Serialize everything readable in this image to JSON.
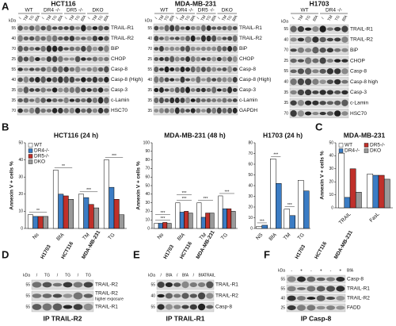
{
  "panel_labels": [
    "A",
    "B",
    "C",
    "D",
    "E",
    "F"
  ],
  "kda_label": "kDa",
  "blots_a": [
    {
      "title": "HCT116",
      "groups": [
        "WT",
        "DR4 -/-",
        "DR5 -/-",
        "DKO"
      ],
      "lanes": [
        "/",
        "TM",
        "TG",
        "BfA"
      ],
      "rows": [
        {
          "label": "TRAIL-R1",
          "kda": 55
        },
        {
          "label": "TRAIL-R2",
          "kda": 40
        },
        {
          "label": "BiP",
          "kda": 70
        },
        {
          "label": "CHOP",
          "kda": 25
        },
        {
          "label": "Casp-8",
          "kda": 55
        },
        {
          "label": "Casp-8 (High)",
          "kda": 40
        },
        {
          "label": "Casp-3",
          "kda": 35
        },
        {
          "label": "c-Lamin",
          "kda": 35
        },
        {
          "label": "HSC70",
          "kda": 70
        }
      ]
    },
    {
      "title": "MDA-MB-231",
      "groups": [
        "WT",
        "DR4 -/-",
        "DR5 -/-",
        "DKO"
      ],
      "lanes": [
        "/",
        "TM",
        "TG",
        "BfA"
      ],
      "rows": [
        {
          "label": "TRAIL-R1",
          "kda": 55
        },
        {
          "label": "TRAIL-R2",
          "kda": 40
        },
        {
          "label": "BiP",
          "kda": 70
        },
        {
          "label": "CHOP",
          "kda": 25
        },
        {
          "label": "Casp-8",
          "kda": 55
        },
        {
          "label": "Casp-8 (High)",
          "kda": 40
        },
        {
          "label": "Casp-3",
          "kda": 35
        },
        {
          "label": "c-Lamin",
          "kda": 35
        },
        {
          "label": "GAPDH",
          "kda": 35
        }
      ]
    },
    {
      "title": "H1703",
      "groups": [
        "WT",
        "DR4 -/-"
      ],
      "lanes": [
        "/",
        "TM",
        "TG",
        "BfA"
      ],
      "rows": [
        {
          "label": "TRAIL-R1",
          "kda": 55
        },
        {
          "label": "TRAIL-R2",
          "kda": 40
        },
        {
          "label": "BiP",
          "kda": 70
        },
        {
          "label": "CHOP",
          "kda": 25
        },
        {
          "label": "Casp-8",
          "kda": 55
        },
        {
          "label": "Casp-8 high",
          "kda": 40
        },
        {
          "label": "Casp-3",
          "kda": 35
        },
        {
          "label": "c-Lamin",
          "kda": 35
        },
        {
          "label": "HSC70",
          "kda": 70
        }
      ]
    }
  ],
  "chart_data": [
    {
      "type": "bar",
      "title": "HCT116 (24 h)",
      "ylabel": "Annexin V + cells %",
      "categories": [
        "Ns",
        "BfA",
        "TM",
        "TG"
      ],
      "series": [
        {
          "name": "WT",
          "color": "#ffffff",
          "values": [
            8,
            34,
            20,
            40
          ]
        },
        {
          "name": "DR4-/-",
          "color": "#3b7cc4",
          "values": [
            7,
            20,
            18,
            24
          ]
        },
        {
          "name": "DR5-/-",
          "color": "#c0302a",
          "values": [
            7,
            19,
            14,
            17
          ]
        },
        {
          "name": "DKO",
          "color": "#9a9a9a",
          "values": [
            7,
            17,
            12,
            8
          ]
        }
      ],
      "ylim": [
        0,
        50
      ],
      "yticks": [
        0,
        10,
        20,
        30,
        40,
        50
      ],
      "legend": "upper left",
      "annotations": [
        "**",
        "**",
        "***",
        "***"
      ]
    },
    {
      "type": "bar",
      "title": "MDA-MB-231 (48 h)",
      "ylabel": "Annexin V + cells %",
      "categories": [
        "Ns",
        "BfA",
        "TM",
        "TG"
      ],
      "series": [
        {
          "name": "WT",
          "color": "#ffffff",
          "values": [
            6,
            30,
            30,
            38
          ]
        },
        {
          "name": "DR4-/-",
          "color": "#3b7cc4",
          "values": [
            6,
            19,
            13,
            23
          ]
        },
        {
          "name": "DR5-/-",
          "color": "#c0302a",
          "values": [
            7,
            20,
            18,
            23
          ]
        },
        {
          "name": "DKO",
          "color": "#9a9a9a",
          "values": [
            6,
            18,
            18,
            20
          ]
        }
      ],
      "ylim": [
        0,
        100
      ],
      "yticks": [
        0,
        10,
        20,
        30,
        40,
        50,
        60,
        70,
        80,
        90,
        100
      ],
      "annotations": [
        "***",
        "***",
        "***",
        "***",
        "***",
        "***"
      ]
    },
    {
      "type": "bar",
      "title": "H1703 (24 h)",
      "categories": [
        "NS",
        "BfA",
        "TM",
        "TG"
      ],
      "series": [
        {
          "name": "WT",
          "color": "#ffffff",
          "values": [
            2,
            65,
            18,
            45
          ]
        },
        {
          "name": "DR4-/-",
          "color": "#3b7cc4",
          "values": [
            3,
            42,
            12,
            35
          ]
        }
      ],
      "ylim": [
        0,
        80
      ],
      "yticks": [
        0,
        10,
        20,
        30,
        40,
        50,
        60,
        70,
        80
      ],
      "annotations": [
        "***",
        "***",
        "***"
      ]
    },
    {
      "type": "bar",
      "title": "MDA-MB-231",
      "ylabel": "Annexin V + cells %",
      "categories": [
        "TRAIL",
        "FasL"
      ],
      "series": [
        {
          "name": "WT",
          "color": "#ffffff",
          "values": [
            42,
            26
          ]
        },
        {
          "name": "DR4-/-",
          "color": "#3b7cc4",
          "values": [
            8,
            25
          ]
        },
        {
          "name": "DR5-/-",
          "color": "#c0302a",
          "values": [
            30,
            25
          ]
        },
        {
          "name": "DKO",
          "color": "#9a9a9a",
          "values": [
            12,
            22
          ]
        }
      ],
      "ylim": [
        0,
        50
      ],
      "yticks": [
        0,
        10,
        20,
        30,
        40,
        50
      ],
      "legend": "upper"
    }
  ],
  "ip_blots": [
    {
      "groups": [
        "H1703",
        "HCT116",
        "MDA-MB-231"
      ],
      "lanes": [
        "/",
        "TG",
        "/",
        "TG",
        "/",
        "TG"
      ],
      "rows": [
        {
          "label": "TRAIL-R2",
          "kda": 55
        },
        {
          "label": "TRAIL-R2",
          "note": "higher exposure",
          "kda": 55
        },
        {
          "label": "TRAIL-R1",
          "kda": 55
        }
      ],
      "caption": "IP TRAIL-R2"
    },
    {
      "groups": [
        "H1703",
        "HCT116",
        "MDA-MB-231"
      ],
      "lanes": [
        "/",
        "BfA",
        "/",
        "BfA",
        "/",
        "BfA",
        "TRAIL"
      ],
      "rows": [
        {
          "label": "TRAIL-R1",
          "kda": 55
        },
        {
          "label": "TRAIL-R2",
          "kda": 40
        },
        {
          "label": "Casp-8",
          "kda": 55
        }
      ],
      "caption": "IP TRAIL-R1"
    },
    {
      "groups": [
        "H1703",
        "HCT116",
        "MDA-MB-231"
      ],
      "treatment": "BfA",
      "lanes": [
        "-",
        "+",
        "-",
        "+",
        "-",
        "+"
      ],
      "rows": [
        {
          "label": "Casp-8",
          "kda": 55
        },
        {
          "label": "TRAIL-R1",
          "kda": 55
        },
        {
          "label": "TRAIL-R2",
          "kda": 40
        },
        {
          "label": "FADD",
          "kda": 25
        }
      ],
      "caption": "IP Casp-8"
    }
  ]
}
